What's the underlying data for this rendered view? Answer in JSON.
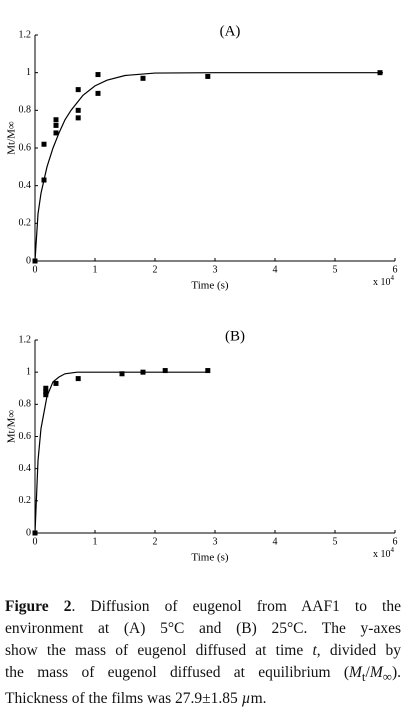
{
  "chart_data": [
    {
      "type": "scatter",
      "title": "(A)",
      "x_label": "Time (s)",
      "y_label": "Mt/M∞",
      "x_multiplier": {
        "base": "x 10",
        "exponent": "4"
      },
      "xlim": [
        0,
        6
      ],
      "ylim": [
        0,
        1.2
      ],
      "xticks": [
        0,
        1,
        2,
        3,
        4,
        5,
        6
      ],
      "yticks": [
        0,
        0.2,
        0.4,
        0.6,
        0.8,
        1,
        1.2
      ],
      "series": [
        {
          "style": "marker",
          "color": "#000000",
          "x": [
            0,
            0.15,
            0.15,
            0.35,
            0.35,
            0.35,
            0.72,
            0.72,
            0.72,
            1.05,
            1.05,
            1.8,
            2.88,
            5.75
          ],
          "values": [
            0,
            0.43,
            0.62,
            0.68,
            0.72,
            0.75,
            0.76,
            0.8,
            0.91,
            0.89,
            0.99,
            0.97,
            0.98,
            1.0
          ]
        },
        {
          "style": "line",
          "color": "#000000",
          "x": [
            0,
            0.05,
            0.1,
            0.2,
            0.3,
            0.4,
            0.5,
            0.6,
            0.8,
            1.0,
            1.2,
            1.5,
            2,
            3,
            4,
            5,
            5.8
          ],
          "values": [
            0,
            0.25,
            0.36,
            0.5,
            0.6,
            0.68,
            0.75,
            0.8,
            0.88,
            0.93,
            0.96,
            0.985,
            0.998,
            1,
            1,
            1,
            1
          ]
        }
      ]
    },
    {
      "type": "scatter",
      "title": "(B)",
      "x_label": "Time (s)",
      "y_label": "Mt/M∞",
      "x_multiplier": {
        "base": "x 10",
        "exponent": "4"
      },
      "xlim": [
        0,
        6
      ],
      "ylim": [
        0,
        1.2
      ],
      "xticks": [
        0,
        1,
        2,
        3,
        4,
        5,
        6
      ],
      "yticks": [
        0,
        0.2,
        0.4,
        0.6,
        0.8,
        1,
        1.2
      ],
      "series": [
        {
          "style": "marker",
          "color": "#000000",
          "x": [
            0,
            0.18,
            0.18,
            0.18,
            0.35,
            0.72,
            1.45,
            1.8,
            2.17,
            2.88
          ],
          "values": [
            0,
            0.86,
            0.88,
            0.9,
            0.93,
            0.96,
            0.99,
            1.0,
            1.01,
            1.01
          ]
        },
        {
          "style": "line",
          "color": "#000000",
          "x": [
            0,
            0.05,
            0.1,
            0.2,
            0.3,
            0.4,
            0.5,
            0.7,
            1,
            2,
            2.9
          ],
          "values": [
            0,
            0.45,
            0.65,
            0.85,
            0.94,
            0.97,
            0.99,
            1,
            1,
            1,
            1
          ]
        }
      ]
    }
  ],
  "caption": {
    "lines": [
      [
        "Figure 2",
        ". Diffusion of eugenol from AAF1 to the"
      ],
      [
        "environment at (A) 5°C and (B) 25°C. The y-axes"
      ],
      [
        "show the mass of eugenol diffused at time ",
        "t",
        ", divided by"
      ],
      [
        "the mass of eugenol diffused at equilibrium (",
        "M",
        "t",
        "/",
        "M",
        "∞",
        ")."
      ],
      [
        "Thickness of the films was 27.9±1.85 ",
        "µ",
        "m."
      ]
    ]
  }
}
